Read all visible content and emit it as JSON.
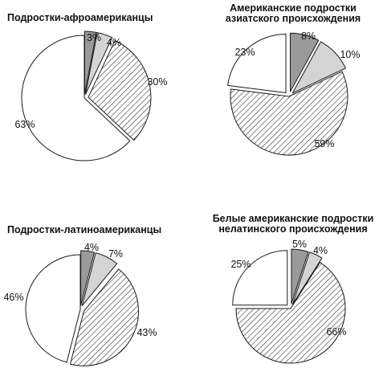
{
  "colors": {
    "dark_gray": "#9a9a9a",
    "light_gray": "#d4d4d4",
    "hatch": "#222222",
    "white": "#ffffff",
    "stroke": "#1a1a1a"
  },
  "chart_data": [
    {
      "type": "pie",
      "title_lines": [
        "Подростки-афроамериканцы"
      ],
      "title_anchor": "start",
      "values": [
        3,
        4,
        30,
        63
      ],
      "labels": [
        "3%",
        "4%",
        "30%",
        "63%"
      ],
      "fills": [
        "dark",
        "light",
        "hatch",
        "white"
      ],
      "exploded": [
        true,
        true,
        true,
        false
      ]
    },
    {
      "type": "pie",
      "title_lines": [
        "Американские подростки",
        "азиатского происхождения"
      ],
      "title_anchor": "middle",
      "values": [
        8,
        10,
        59,
        23
      ],
      "labels": [
        "8%",
        "10%",
        "59%",
        "23%"
      ],
      "fills": [
        "dark",
        "light",
        "hatch",
        "white"
      ],
      "exploded": [
        true,
        true,
        false,
        true
      ]
    },
    {
      "type": "pie",
      "title_lines": [
        "Подростки-латиноамериканцы"
      ],
      "title_anchor": "start",
      "values": [
        4,
        7,
        43,
        46
      ],
      "labels": [
        "4%",
        "7%",
        "43%",
        "46%"
      ],
      "fills": [
        "dark",
        "light",
        "hatch",
        "white"
      ],
      "exploded": [
        true,
        true,
        true,
        false
      ]
    },
    {
      "type": "pie",
      "title_lines": [
        "Белые американские подростки",
        "нелатинского происхождения"
      ],
      "title_anchor": "middle",
      "values": [
        5,
        4,
        66,
        25
      ],
      "labels": [
        "5%",
        "4%",
        "66%",
        "25%"
      ],
      "fills": [
        "dark",
        "light",
        "hatch",
        "white"
      ],
      "exploded": [
        true,
        true,
        false,
        true
      ]
    }
  ]
}
